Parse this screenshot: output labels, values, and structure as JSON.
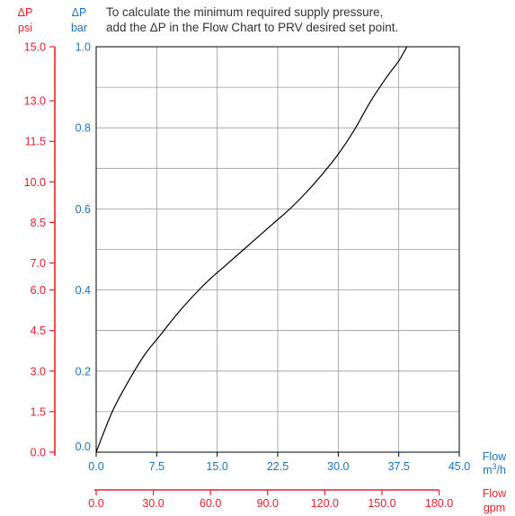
{
  "note": {
    "line1": "To calculate the minimum required supply pressure,",
    "line2": "add the ΔP in the Flow Chart to PRV desired set point."
  },
  "colors": {
    "red": "#e8202a",
    "blue": "#1b74c2",
    "grid": "#999999",
    "curve": "#000000"
  },
  "chart_data": {
    "type": "line",
    "title": "",
    "grid": true,
    "psi_axis": {
      "label_line1": "ΔP",
      "label_line2": "psi",
      "ticks": [
        "0.0",
        "1.5",
        "3.0",
        "4.5",
        "6.0",
        "7.0",
        "8.5",
        "10.0",
        "11.5",
        "13.0",
        "15.0"
      ],
      "tick_values": [
        0,
        1.5,
        3.0,
        4.5,
        6.0,
        7.0,
        8.5,
        10.0,
        11.5,
        13.0,
        15.0
      ],
      "range": [
        0,
        15
      ]
    },
    "bar_axis": {
      "label_line1": "ΔP",
      "label_line2": "bar",
      "ticks": [
        "0.0",
        "0.2",
        "0.4",
        "0.6",
        "0.8",
        "1.0"
      ],
      "tick_values": [
        0,
        0.2,
        0.4,
        0.6,
        0.8,
        1.0
      ],
      "range": [
        0,
        1.0
      ]
    },
    "flow_m3h_axis": {
      "label_line1": "Flow",
      "label_line2": "m3/h",
      "ticks": [
        "0.0",
        "7.5",
        "15.0",
        "22.5",
        "30.0",
        "37.5",
        "45.0"
      ],
      "tick_values": [
        0,
        7.5,
        15,
        22.5,
        30,
        37.5,
        45
      ],
      "range": [
        0,
        45
      ]
    },
    "flow_gpm_axis": {
      "label_line1": "Flow",
      "label_line2": "gpm",
      "ticks": [
        "0.0",
        "30.0",
        "60.0",
        "90.0",
        "120.0",
        "150.0",
        "180.0"
      ],
      "tick_values": [
        0,
        30,
        60,
        90,
        120,
        150,
        180
      ],
      "range": [
        0,
        180
      ]
    },
    "series": [
      {
        "x": [
          0,
          2,
          4,
          6,
          8,
          10,
          12,
          14,
          16,
          18,
          20,
          22,
          24,
          26,
          28,
          30,
          32,
          34,
          36,
          37.5,
          38.5
        ],
        "y": [
          0,
          0.1,
          0.175,
          0.24,
          0.29,
          0.34,
          0.385,
          0.425,
          0.46,
          0.495,
          0.53,
          0.565,
          0.6,
          0.64,
          0.685,
          0.735,
          0.795,
          0.865,
          0.925,
          0.965,
          1.0
        ]
      }
    ]
  }
}
